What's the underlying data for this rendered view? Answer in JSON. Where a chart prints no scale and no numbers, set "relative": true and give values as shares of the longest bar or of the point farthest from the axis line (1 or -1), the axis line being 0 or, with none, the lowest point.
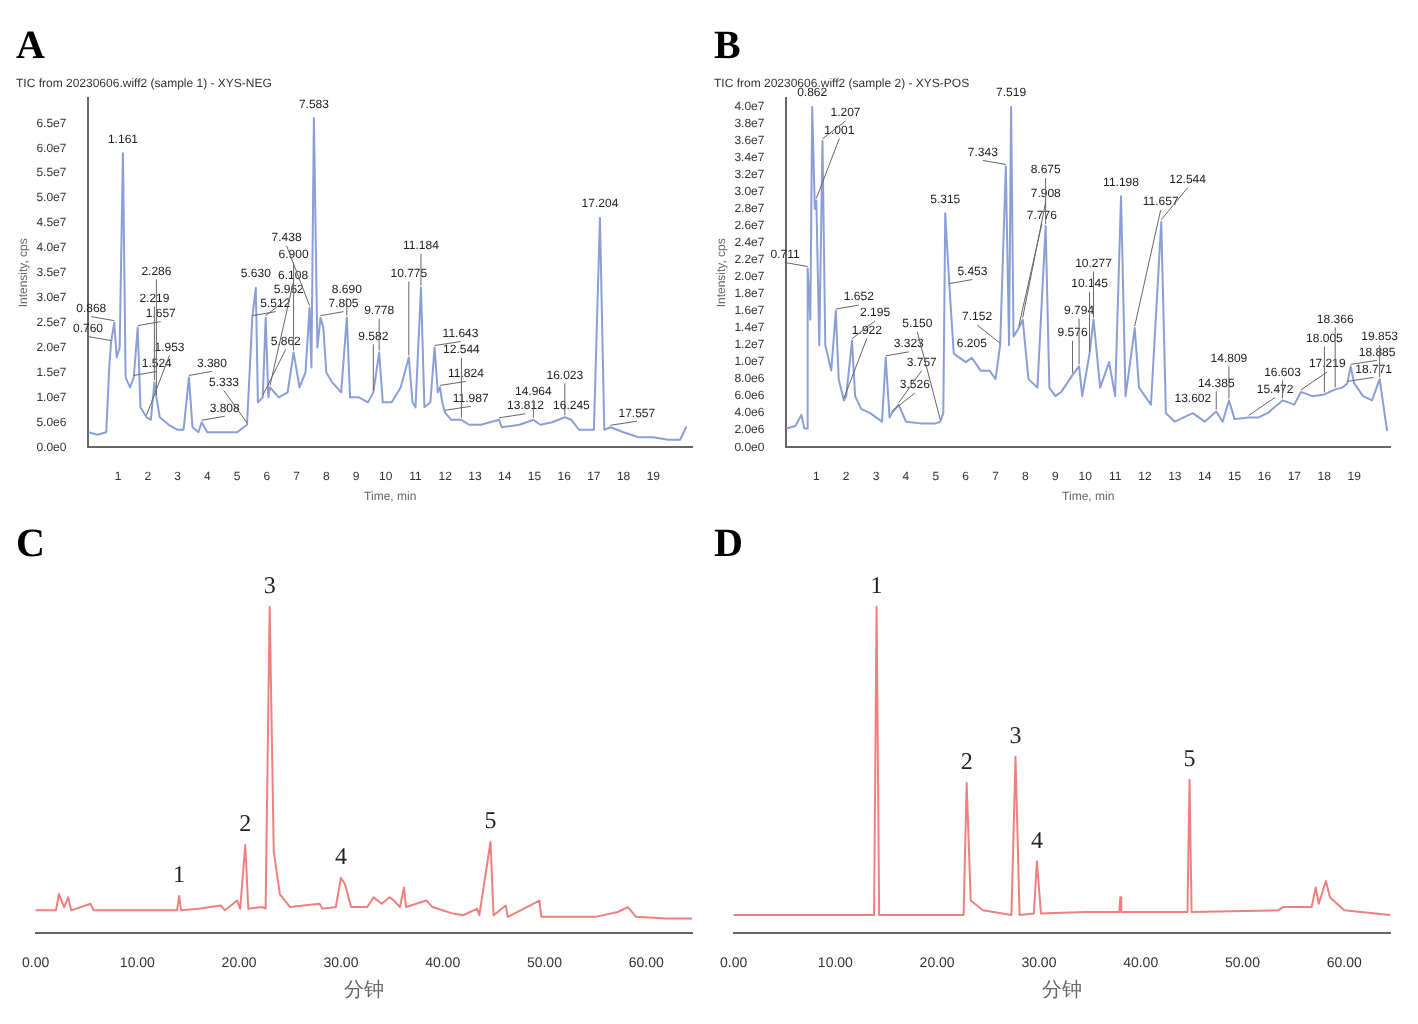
{
  "chart_data": [
    {
      "type": "line",
      "title": "A",
      "subtitle": "TIC from 20230606.wiff2 (sample 1) - XYS-NEG",
      "xlabel": "Time, min",
      "ylabel": "Intensity, cps",
      "color": "#8b9fd6",
      "marker": "none",
      "x": [
        0,
        0.3,
        0.6,
        0.7,
        0.76,
        0.868,
        0.95,
        1.05,
        1.161,
        1.25,
        1.4,
        1.524,
        1.657,
        1.75,
        1.953,
        2.1,
        2.219,
        2.286,
        2.4,
        2.7,
        3.0,
        3.2,
        3.38,
        3.5,
        3.7,
        3.808,
        4.0,
        4.5,
        5.0,
        5.333,
        5.512,
        5.63,
        5.7,
        5.862,
        5.962,
        6.05,
        6.108,
        6.4,
        6.7,
        6.9,
        7.1,
        7.3,
        7.438,
        7.5,
        7.583,
        7.7,
        7.805,
        7.9,
        8.0,
        8.2,
        8.5,
        8.69,
        8.8,
        9.1,
        9.4,
        9.582,
        9.778,
        9.9,
        10.2,
        10.5,
        10.775,
        10.9,
        11.0,
        11.184,
        11.3,
        11.5,
        11.643,
        11.75,
        11.824,
        11.9,
        11.987,
        12.2,
        12.544,
        12.8,
        13.2,
        13.812,
        13.9,
        14.5,
        14.964,
        15.2,
        15.6,
        16.023,
        16.245,
        16.5,
        17.0,
        17.204,
        17.35,
        17.557,
        18.0,
        18.5,
        19.0,
        19.5,
        19.9,
        20.1
      ],
      "values": [
        3000000.0,
        2500000.0,
        3000000.0,
        16000000.0,
        21000000.0,
        25000000.0,
        18000000.0,
        20000000.0,
        59000000.0,
        14000000.0,
        12000000.0,
        14000000.0,
        24000000.0,
        8000000.0,
        6000000.0,
        5500000.0,
        13000000.0,
        10000000.0,
        6000000.0,
        4500000.0,
        3500000.0,
        3500000.0,
        14000000.0,
        4000000.0,
        3000000.0,
        5000000.0,
        3000000.0,
        3000000.0,
        3000000.0,
        4500000.0,
        26000000.0,
        32000000.0,
        9000000.0,
        10000000.0,
        26000000.0,
        10000000.0,
        12000000.0,
        10000000.0,
        11000000.0,
        19000000.0,
        12000000.0,
        15000000.0,
        28000000.0,
        16000000.0,
        66000000.0,
        20000000.0,
        26000000.0,
        24000000.0,
        15000000.0,
        13000000.0,
        11000000.0,
        26000000.0,
        10000000.0,
        10000000.0,
        9000000.0,
        11000000.0,
        19000000.0,
        9000000.0,
        9000000.0,
        12000000.0,
        18000000.0,
        9000000.0,
        8000000.0,
        32000000.0,
        8000000.0,
        9000000.0,
        20000000.0,
        11000000.0,
        12000000.0,
        9000000.0,
        7000000.0,
        5500000.0,
        5500000.0,
        4500000.0,
        4500000.0,
        5500000.0,
        4000000.0,
        4500000.0,
        5500000.0,
        4500000.0,
        5000000.0,
        6000000.0,
        5500000.0,
        3500000.0,
        3500000.0,
        46000000.0,
        3500000.0,
        4000000.0,
        3000000.0,
        2000000.0,
        2000000.0,
        1500000.0,
        1500000.0,
        4000000.0
      ],
      "xlim": [
        0,
        20.3
      ],
      "xticks": [
        1,
        2,
        3,
        4,
        5,
        6,
        7,
        8,
        9,
        10,
        11,
        12,
        13,
        14,
        15,
        16,
        17,
        18,
        19
      ],
      "ylim": [
        0,
        70000000.0
      ],
      "yticks": [
        {
          "value": 0,
          "label": "0.0e0"
        },
        {
          "value": 5000000.0,
          "label": "5.0e6"
        },
        {
          "value": 10000000.0,
          "label": "1.0e7"
        },
        {
          "value": 15000000.0,
          "label": "1.5e7"
        },
        {
          "value": 20000000.0,
          "label": "2.0e7"
        },
        {
          "value": 25000000.0,
          "label": "2.5e7"
        },
        {
          "value": 30000000.0,
          "label": "3.0e7"
        },
        {
          "value": 35000000.0,
          "label": "3.5e7"
        },
        {
          "value": 40000000.0,
          "label": "4.0e7"
        },
        {
          "value": 45000000.0,
          "label": "4.5e7"
        },
        {
          "value": 50000000.0,
          "label": "5.0e7"
        },
        {
          "value": 55000000.0,
          "label": "5.5e7"
        },
        {
          "value": 60000000.0,
          "label": "6.0e7"
        },
        {
          "value": 65000000.0,
          "label": "6.5e7"
        }
      ],
      "annotations": [
        {
          "text": "0.760",
          "x": 0.76,
          "y": 21000000.0
        },
        {
          "text": "0.868",
          "x": 0.868,
          "y": 25000000.0
        },
        {
          "text": "1.161",
          "x": 1.161,
          "y": 59000000.0
        },
        {
          "text": "1.524",
          "x": 1.524,
          "y": 14000000.0
        },
        {
          "text": "1.657",
          "x": 1.657,
          "y": 24000000.0
        },
        {
          "text": "1.953",
          "x": 1.953,
          "y": 6000000.0
        },
        {
          "text": "2.219",
          "x": 2.219,
          "y": 13000000.0
        },
        {
          "text": "2.286",
          "x": 2.286,
          "y": 10000000.0
        },
        {
          "text": "3.380",
          "x": 3.38,
          "y": 14000000.0
        },
        {
          "text": "3.808",
          "x": 3.808,
          "y": 5000000.0
        },
        {
          "text": "5.333",
          "x": 5.333,
          "y": 4500000.0
        },
        {
          "text": "5.512",
          "x": 5.512,
          "y": 26000000.0
        },
        {
          "text": "5.630",
          "x": 5.63,
          "y": 32000000.0
        },
        {
          "text": "5.862",
          "x": 5.862,
          "y": 10000000.0
        },
        {
          "text": "5.962",
          "x": 5.962,
          "y": 26000000.0
        },
        {
          "text": "6.108",
          "x": 6.108,
          "y": 12000000.0
        },
        {
          "text": "6.900",
          "x": 6.9,
          "y": 19000000.0
        },
        {
          "text": "7.438",
          "x": 7.438,
          "y": 28000000.0
        },
        {
          "text": "7.583",
          "x": 7.583,
          "y": 66000000.0
        },
        {
          "text": "7.805",
          "x": 7.805,
          "y": 26000000.0
        },
        {
          "text": "8.690",
          "x": 8.69,
          "y": 26000000.0
        },
        {
          "text": "9.582",
          "x": 9.582,
          "y": 11000000.0
        },
        {
          "text": "9.778",
          "x": 9.778,
          "y": 19000000.0
        },
        {
          "text": "10.775",
          "x": 10.775,
          "y": 18000000.0
        },
        {
          "text": "11.184",
          "x": 11.184,
          "y": 32000000.0
        },
        {
          "text": "11.643",
          "x": 11.643,
          "y": 20000000.0
        },
        {
          "text": "11.824",
          "x": 11.824,
          "y": 12000000.0
        },
        {
          "text": "11.987",
          "x": 11.987,
          "y": 7000000.0
        },
        {
          "text": "12.544",
          "x": 12.544,
          "y": 5500000.0
        },
        {
          "text": "13.812",
          "x": 13.812,
          "y": 5500000.0
        },
        {
          "text": "14.964",
          "x": 14.964,
          "y": 5500000.0
        },
        {
          "text": "16.023",
          "x": 16.023,
          "y": 6000000.0
        },
        {
          "text": "16.245",
          "x": 16.245,
          "y": 5500000.0
        },
        {
          "text": "17.204",
          "x": 17.204,
          "y": 46000000.0
        },
        {
          "text": "17.557",
          "x": 17.557,
          "y": 4000000.0
        }
      ]
    },
    {
      "type": "line",
      "title": "B",
      "subtitle": "TIC from 20230606.wiff2 (sample 2) - XYS-POS",
      "xlabel": "Time, min",
      "ylabel": "Intensity, cps",
      "color": "#8b9fd6",
      "marker": "none",
      "x": [
        0,
        0.3,
        0.5,
        0.6,
        0.68,
        0.711,
        0.8,
        0.862,
        0.95,
        1.001,
        1.1,
        1.207,
        1.3,
        1.5,
        1.652,
        1.75,
        1.922,
        2.0,
        2.195,
        2.3,
        2.5,
        2.8,
        3.0,
        3.2,
        3.323,
        3.45,
        3.526,
        3.757,
        4.0,
        4.5,
        5.0,
        5.15,
        5.25,
        5.315,
        5.453,
        5.6,
        6.0,
        6.205,
        6.5,
        6.8,
        7.0,
        7.152,
        7.343,
        7.45,
        7.519,
        7.6,
        7.776,
        7.908,
        8.1,
        8.4,
        8.675,
        8.8,
        9.0,
        9.2,
        9.576,
        9.794,
        9.9,
        10.145,
        10.277,
        10.5,
        10.8,
        11.0,
        11.198,
        11.35,
        11.657,
        11.8,
        12.2,
        12.544,
        12.7,
        13.0,
        13.602,
        14.0,
        14.385,
        14.6,
        14.809,
        15.0,
        15.472,
        15.8,
        16.1,
        16.603,
        17.0,
        17.219,
        17.6,
        18.005,
        18.366,
        18.6,
        18.771,
        18.885,
        19.0,
        19.3,
        19.6,
        19.853,
        20.1
      ],
      "values": [
        2200000.0,
        2500000.0,
        3800000.0,
        2200000.0,
        2200000.0,
        21000000.0,
        15000000.0,
        40000000.0,
        28000000.0,
        29000000.0,
        12000000.0,
        36000000.0,
        12000000.0,
        9000000.0,
        16000000.0,
        8000000.0,
        5500000.0,
        6000000.0,
        12500000.0,
        6000000.0,
        4500000.0,
        4000000.0,
        3500000.0,
        3000000.0,
        10500000.0,
        3500000.0,
        4000000.0,
        5000000.0,
        3000000.0,
        2800000.0,
        2800000.0,
        3000000.0,
        4000000.0,
        27500000.0,
        19000000.0,
        11000000.0,
        10000000.0,
        10500000.0,
        9000000.0,
        9000000.0,
        8000000.0,
        12000000.0,
        33000000.0,
        12000000.0,
        40000000.0,
        13000000.0,
        14000000.0,
        15000000.0,
        8000000.0,
        7000000.0,
        26000000.0,
        7000000.0,
        6000000.0,
        6500000.0,
        8500000.0,
        9500000.0,
        6000000.0,
        11000000.0,
        15000000.0,
        7000000.0,
        10000000.0,
        6000000.0,
        29500000.0,
        6000000.0,
        14000000.0,
        7000000.0,
        5000000.0,
        26500000.0,
        4000000.0,
        3000000.0,
        4000000.0,
        3000000.0,
        4200000.0,
        3000000.0,
        5500000.0,
        3300000.0,
        3500000.0,
        3500000.0,
        4000000.0,
        5500000.0,
        5000000.0,
        6500000.0,
        6000000.0,
        6200000.0,
        6800000.0,
        7000000.0,
        7500000.0,
        9500000.0,
        7500000.0,
        6000000.0,
        5500000.0,
        8000000.0,
        2000000.0
      ],
      "xlim": [
        0,
        20.2
      ],
      "xticks": [
        1,
        2,
        3,
        4,
        5,
        6,
        7,
        8,
        9,
        10,
        11,
        12,
        13,
        14,
        15,
        16,
        17,
        18,
        19
      ],
      "ylim": [
        0,
        41000000.0
      ],
      "yticks": [
        {
          "value": 0,
          "label": "0.0e0"
        },
        {
          "value": 2000000.0,
          "label": "2.0e6"
        },
        {
          "value": 4000000.0,
          "label": "4.0e6"
        },
        {
          "value": 6000000.0,
          "label": "6.0e6"
        },
        {
          "value": 8000000.0,
          "label": "8.0e6"
        },
        {
          "value": 10000000.0,
          "label": "1.0e7"
        },
        {
          "value": 12000000.0,
          "label": "1.2e7"
        },
        {
          "value": 14000000.0,
          "label": "1.4e7"
        },
        {
          "value": 16000000.0,
          "label": "1.6e7"
        },
        {
          "value": 18000000.0,
          "label": "1.8e7"
        },
        {
          "value": 20000000.0,
          "label": "2.0e7"
        },
        {
          "value": 22000000.0,
          "label": "2.2e7"
        },
        {
          "value": 24000000.0,
          "label": "2.4e7"
        },
        {
          "value": 26000000.0,
          "label": "2.6e7"
        },
        {
          "value": 28000000.0,
          "label": "2.8e7"
        },
        {
          "value": 30000000.0,
          "label": "3.0e7"
        },
        {
          "value": 32000000.0,
          "label": "3.2e7"
        },
        {
          "value": 34000000.0,
          "label": "3.4e7"
        },
        {
          "value": 36000000.0,
          "label": "3.6e7"
        },
        {
          "value": 38000000.0,
          "label": "3.8e7"
        },
        {
          "value": 40000000.0,
          "label": "4.0e7"
        }
      ],
      "annotations": [
        {
          "text": "0.711",
          "x": 0.711,
          "y": 21000000.0
        },
        {
          "text": "0.862",
          "x": 0.862,
          "y": 40000000.0
        },
        {
          "text": "1.001",
          "x": 1.001,
          "y": 29000000.0
        },
        {
          "text": "1.207",
          "x": 1.207,
          "y": 36000000.0
        },
        {
          "text": "1.652",
          "x": 1.652,
          "y": 16000000.0
        },
        {
          "text": "1.922",
          "x": 1.922,
          "y": 5500000.0
        },
        {
          "text": "2.195",
          "x": 2.195,
          "y": 12500000.0
        },
        {
          "text": "3.323",
          "x": 3.323,
          "y": 10500000.0
        },
        {
          "text": "3.526",
          "x": 3.526,
          "y": 4000000.0
        },
        {
          "text": "3.757",
          "x": 3.757,
          "y": 5000000.0
        },
        {
          "text": "5.150",
          "x": 5.15,
          "y": 3000000.0
        },
        {
          "text": "5.315",
          "x": 5.315,
          "y": 27500000.0
        },
        {
          "text": "5.453",
          "x": 5.453,
          "y": 19000000.0
        },
        {
          "text": "6.205",
          "x": 6.205,
          "y": 10500000.0
        },
        {
          "text": "7.152",
          "x": 7.152,
          "y": 12000000.0
        },
        {
          "text": "7.343",
          "x": 7.343,
          "y": 33000000.0
        },
        {
          "text": "7.519",
          "x": 7.519,
          "y": 40000000.0
        },
        {
          "text": "7.776",
          "x": 7.776,
          "y": 14000000.0
        },
        {
          "text": "7.908",
          "x": 7.908,
          "y": 15000000.0
        },
        {
          "text": "8.675",
          "x": 8.675,
          "y": 26000000.0
        },
        {
          "text": "9.576",
          "x": 9.576,
          "y": 8500000.0
        },
        {
          "text": "9.794",
          "x": 9.794,
          "y": 9500000.0
        },
        {
          "text": "10.145",
          "x": 10.145,
          "y": 11000000.0
        },
        {
          "text": "10.277",
          "x": 10.277,
          "y": 15000000.0
        },
        {
          "text": "11.198",
          "x": 11.198,
          "y": 29500000.0
        },
        {
          "text": "11.657",
          "x": 11.657,
          "y": 14000000.0
        },
        {
          "text": "12.544",
          "x": 12.544,
          "y": 26500000.0
        },
        {
          "text": "13.602",
          "x": 13.602,
          "y": 4000000.0
        },
        {
          "text": "14.385",
          "x": 14.385,
          "y": 4200000.0
        },
        {
          "text": "14.809",
          "x": 14.809,
          "y": 5500000.0
        },
        {
          "text": "15.472",
          "x": 15.472,
          "y": 3500000.0
        },
        {
          "text": "16.603",
          "x": 16.603,
          "y": 5500000.0
        },
        {
          "text": "17.219",
          "x": 17.219,
          "y": 6500000.0
        },
        {
          "text": "18.005",
          "x": 18.005,
          "y": 6200000.0
        },
        {
          "text": "18.366",
          "x": 18.366,
          "y": 6800000.0
        },
        {
          "text": "18.771",
          "x": 18.771,
          "y": 7500000.0
        },
        {
          "text": "18.885",
          "x": 18.885,
          "y": 9500000.0
        },
        {
          "text": "19.853",
          "x": 19.853,
          "y": 8000000.0
        }
      ]
    },
    {
      "type": "line",
      "title": "C",
      "xlabel": "分钟",
      "relative": true,
      "color": "#f08080",
      "marker": "none",
      "x": [
        0,
        2.0,
        2.3,
        2.8,
        3.2,
        3.5,
        5.4,
        5.7,
        8,
        12,
        13.9,
        14.1,
        14.3,
        16,
        18.2,
        18.6,
        19.8,
        20.1,
        20.6,
        20.9,
        22.3,
        22.6,
        23.0,
        23.4,
        24,
        25,
        27.9,
        28.2,
        29.5,
        30.0,
        30.4,
        31,
        32.6,
        33.2,
        34,
        34.8,
        35.2,
        35.8,
        36.2,
        36.4,
        38.4,
        39,
        41,
        42,
        43.4,
        43.6,
        44.7,
        45,
        46.2,
        46.4,
        49.5,
        49.7,
        55,
        57.2,
        58.2,
        59,
        62,
        64.5
      ],
      "values": [
        0.07,
        0.07,
        0.12,
        0.08,
        0.11,
        0.07,
        0.09,
        0.07,
        0.07,
        0.07,
        0.07,
        0.114,
        0.07,
        0.075,
        0.085,
        0.07,
        0.1,
        0.075,
        0.27,
        0.075,
        0.08,
        0.075,
        1.0,
        0.25,
        0.12,
        0.08,
        0.09,
        0.075,
        0.08,
        0.17,
        0.15,
        0.08,
        0.08,
        0.11,
        0.09,
        0.11,
        0.1,
        0.08,
        0.14,
        0.08,
        0.1,
        0.08,
        0.06,
        0.055,
        0.075,
        0.055,
        0.28,
        0.055,
        0.085,
        0.05,
        0.1,
        0.05,
        0.05,
        0.065,
        0.08,
        0.05,
        0.045,
        0.045
      ],
      "xlim": [
        0,
        64.5
      ],
      "xticks": [
        {
          "value": 0,
          "label": "0.00"
        },
        {
          "value": 10,
          "label": "10.00"
        },
        {
          "value": 20,
          "label": "20.00"
        },
        {
          "value": 30,
          "label": "30.00"
        },
        {
          "value": 40,
          "label": "40.00"
        },
        {
          "value": 50,
          "label": "50.00"
        },
        {
          "value": 60,
          "label": "60.00"
        }
      ],
      "annotations": [
        {
          "text": "1",
          "x": 14.1,
          "y": 0.114
        },
        {
          "text": "2",
          "x": 20.6,
          "y": 0.27
        },
        {
          "text": "3",
          "x": 23.0,
          "y": 1.0
        },
        {
          "text": "4",
          "x": 30.0,
          "y": 0.17
        },
        {
          "text": "5",
          "x": 44.7,
          "y": 0.28
        }
      ]
    },
    {
      "type": "line",
      "title": "D",
      "xlabel": "分钟",
      "relative": true,
      "color": "#f08080",
      "marker": "none",
      "x": [
        0,
        13.8,
        14.05,
        14.3,
        22.6,
        22.9,
        23.3,
        24.5,
        27.3,
        27.7,
        28.1,
        29.5,
        29.8,
        30.2,
        34.5,
        37.9,
        38.0,
        38.1,
        44.6,
        44.8,
        45.0,
        53.5,
        54,
        56.8,
        57.2,
        57.5,
        58.2,
        58.6,
        60,
        64.5
      ],
      "values": [
        0.056,
        0.056,
        1.0,
        0.056,
        0.056,
        0.46,
        0.1,
        0.07,
        0.056,
        0.54,
        0.056,
        0.06,
        0.22,
        0.06,
        0.065,
        0.065,
        0.11,
        0.065,
        0.065,
        0.47,
        0.065,
        0.07,
        0.08,
        0.08,
        0.14,
        0.09,
        0.16,
        0.11,
        0.07,
        0.056
      ],
      "xlim": [
        0,
        64.5
      ],
      "xticks": [
        {
          "value": 0,
          "label": "0.00"
        },
        {
          "value": 10,
          "label": "10.00"
        },
        {
          "value": 20,
          "label": "20.00"
        },
        {
          "value": 30,
          "label": "30.00"
        },
        {
          "value": 40,
          "label": "40.00"
        },
        {
          "value": 50,
          "label": "50.00"
        },
        {
          "value": 60,
          "label": "60.00"
        }
      ],
      "annotations": [
        {
          "text": "1",
          "x": 14.05,
          "y": 1.0
        },
        {
          "text": "2",
          "x": 22.9,
          "y": 0.46
        },
        {
          "text": "3",
          "x": 27.7,
          "y": 0.54
        },
        {
          "text": "4",
          "x": 29.8,
          "y": 0.22
        },
        {
          "text": "5",
          "x": 44.8,
          "y": 0.47
        }
      ]
    }
  ]
}
